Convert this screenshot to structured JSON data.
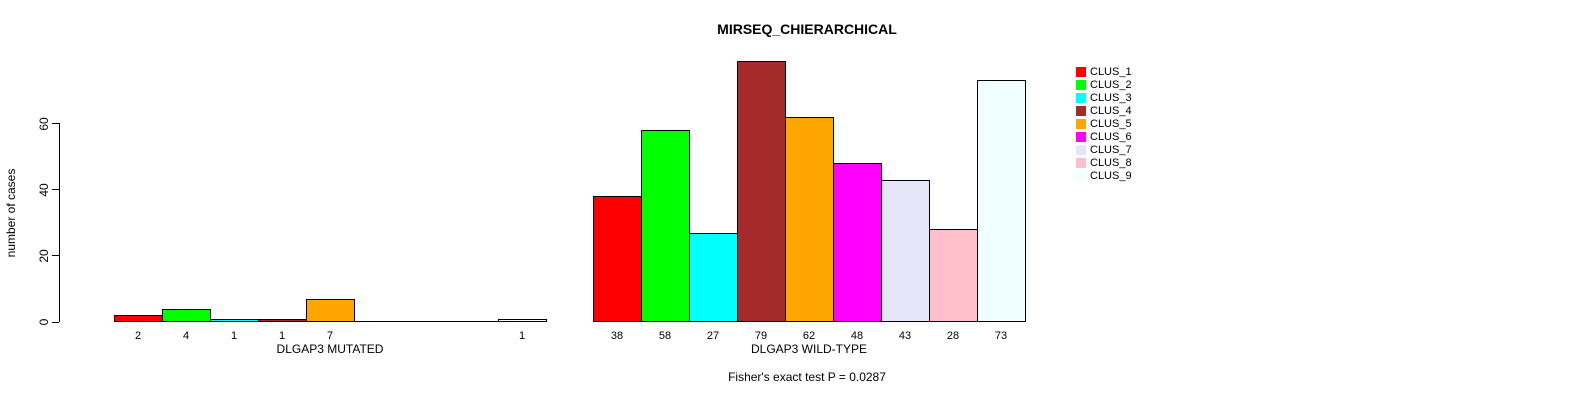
{
  "chart_data": {
    "type": "bar",
    "title": "MIRSEQ_CHIERARCHICAL",
    "ylabel": "number of cases",
    "y_axis": {
      "ticks": [
        0,
        20,
        40,
        60
      ],
      "range": [
        0,
        79
      ],
      "grid": false
    },
    "series": [
      {
        "name": "CLUS_1",
        "color": "#FF0000"
      },
      {
        "name": "CLUS_2",
        "color": "#00FF00"
      },
      {
        "name": "CLUS_3",
        "color": "#00FFFF"
      },
      {
        "name": "CLUS_4",
        "color": "#A52A2A"
      },
      {
        "name": "CLUS_5",
        "color": "#FFA500"
      },
      {
        "name": "CLUS_6",
        "color": "#FF00FF"
      },
      {
        "name": "CLUS_7",
        "color": "#E6E6FA"
      },
      {
        "name": "CLUS_8",
        "color": "#FFC0CB"
      },
      {
        "name": "CLUS_9",
        "color": "#F0FFFF"
      }
    ],
    "groups": [
      {
        "label": "DLGAP3 MUTATED",
        "values": [
          2,
          4,
          1,
          1,
          7,
          0,
          0,
          0,
          1
        ]
      },
      {
        "label": "DLGAP3 WILD-TYPE",
        "values": [
          38,
          58,
          27,
          79,
          62,
          48,
          43,
          28,
          73
        ]
      }
    ],
    "bar_value_labels_shown": true,
    "annotation": "Fisher's exact test P = 0.0287",
    "legend": {
      "position": "right"
    }
  }
}
